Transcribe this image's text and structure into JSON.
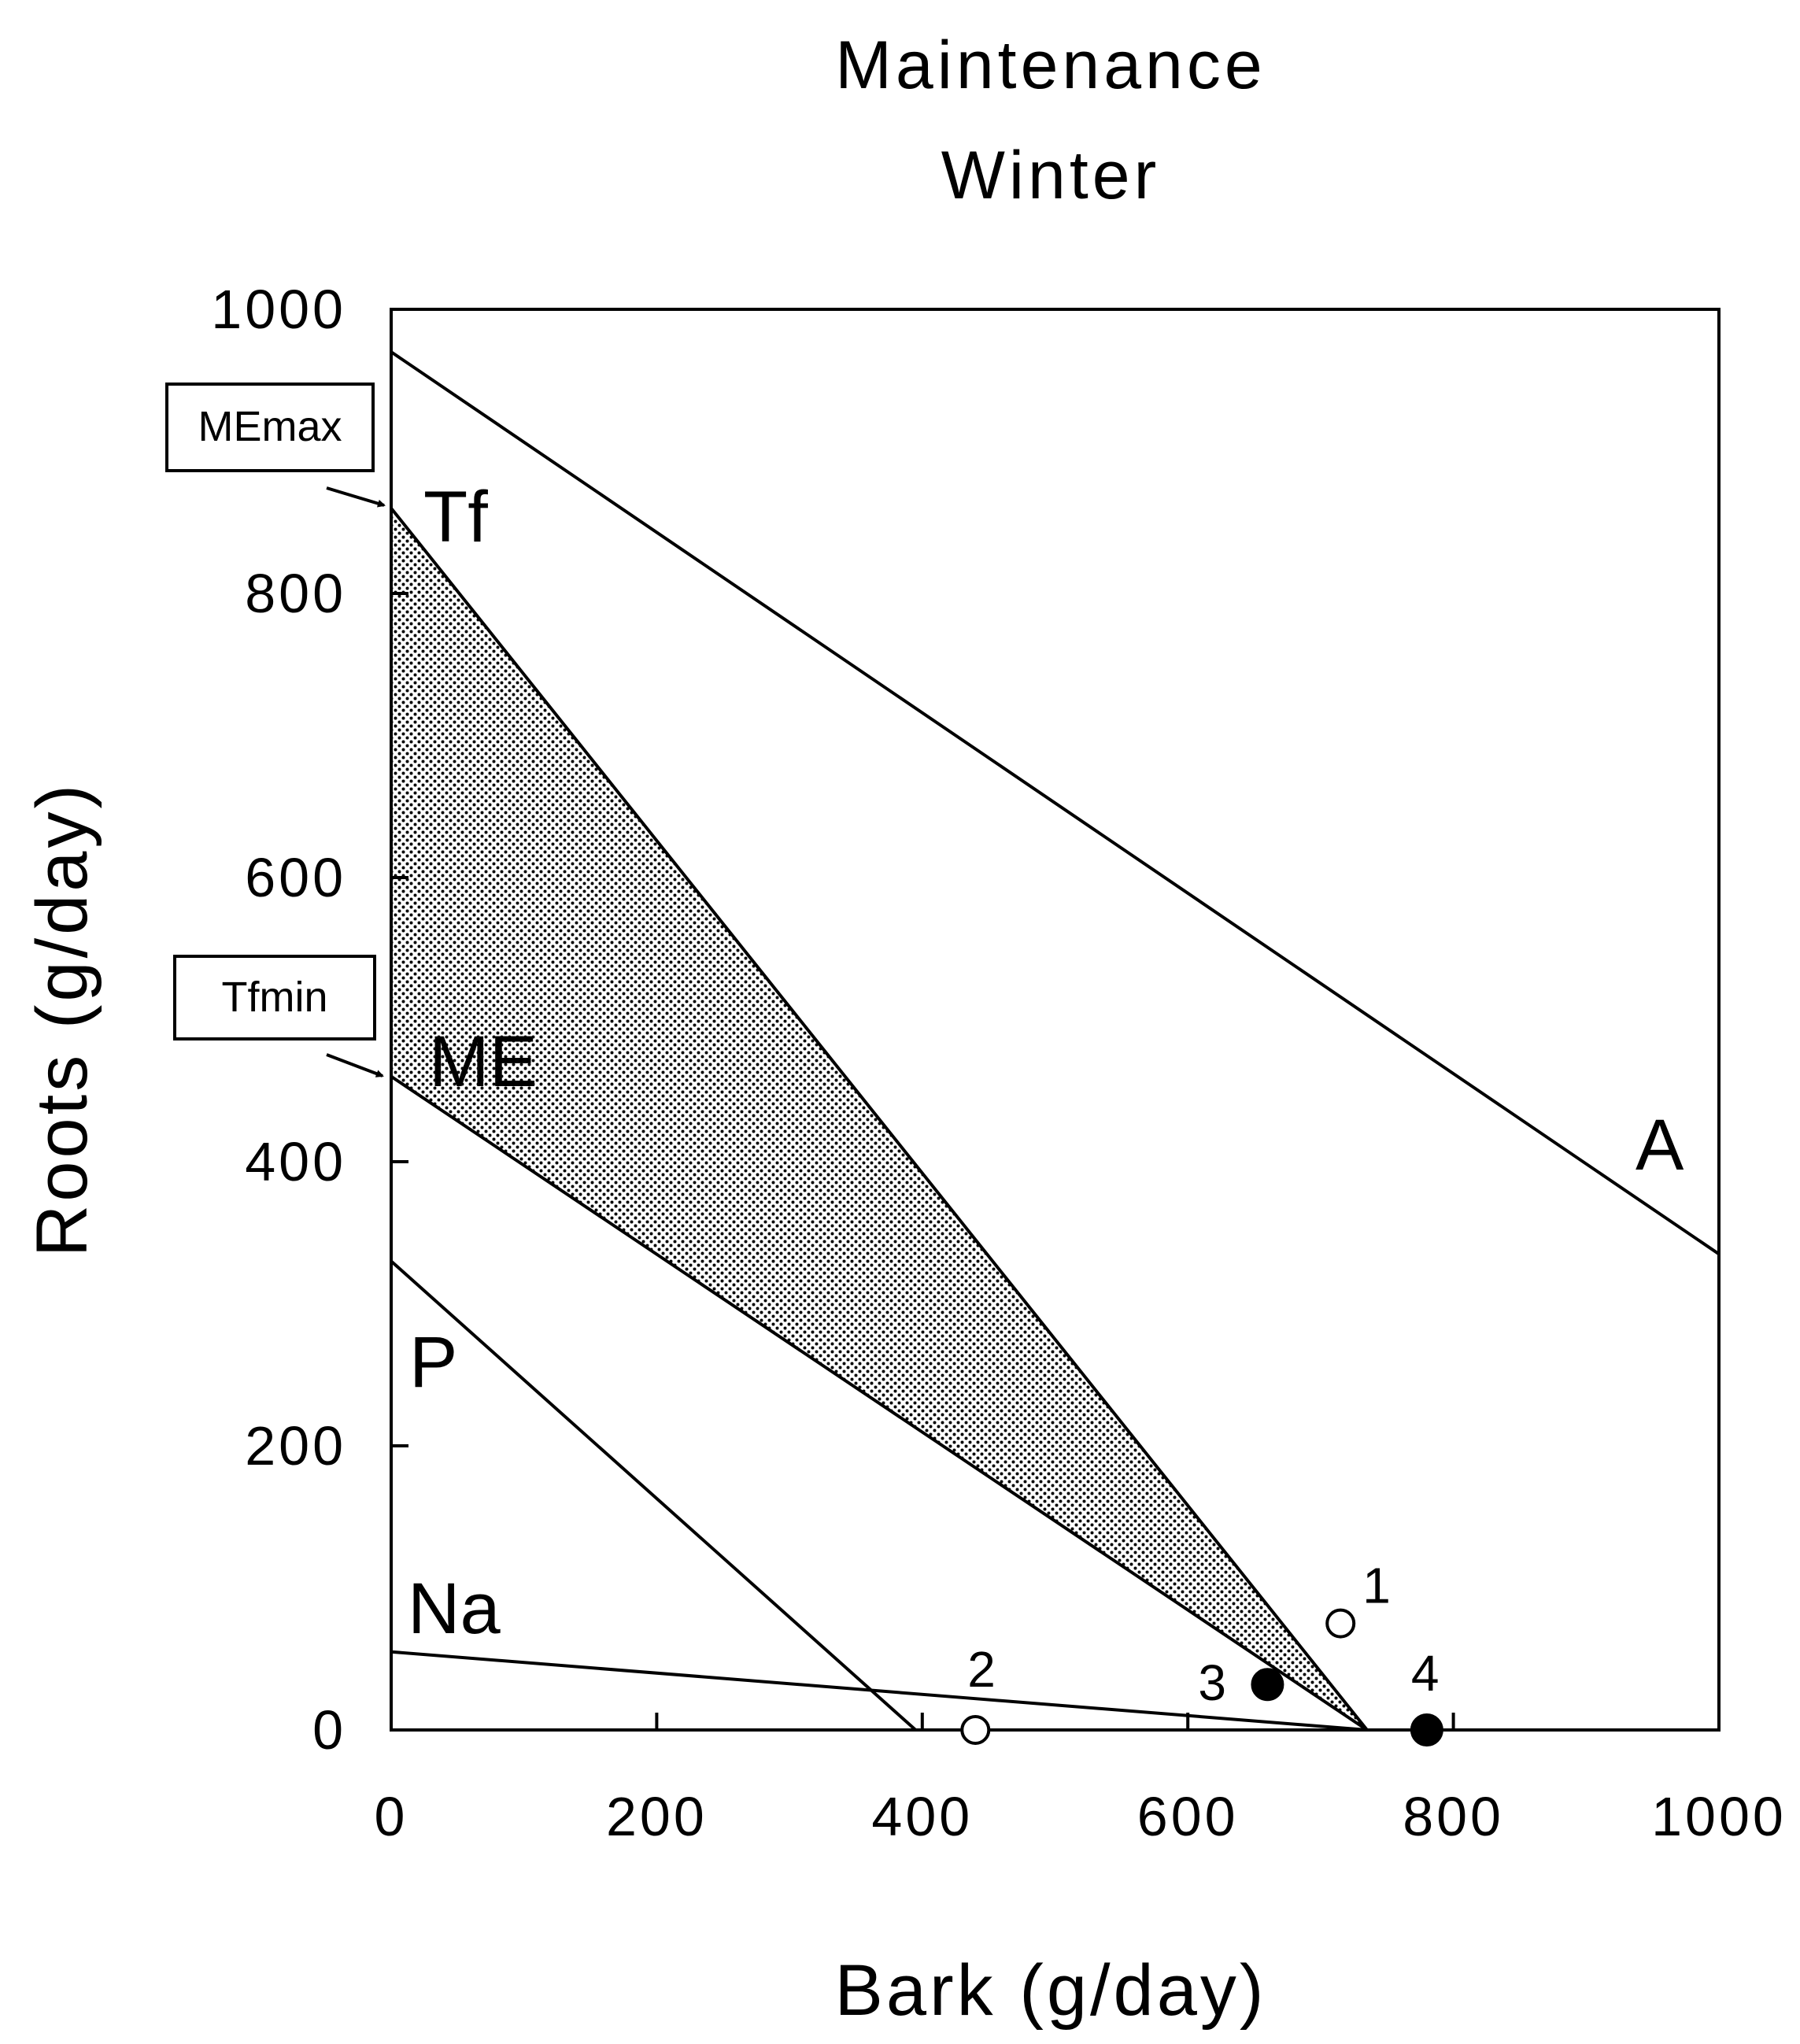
{
  "chart_data": {
    "type": "line",
    "title": [
      "Maintenance",
      "Winter"
    ],
    "xlabel": "Bark (g/day)",
    "ylabel": "Roots (g/day)",
    "xlim": [
      0,
      1000
    ],
    "ylim": [
      0,
      1000
    ],
    "x_ticks": [
      "0",
      "200",
      "400",
      "600",
      "800",
      "1000"
    ],
    "y_ticks": [
      "0",
      "200",
      "400",
      "600",
      "800",
      "1000"
    ],
    "grid": false,
    "series": [
      {
        "name": "A",
        "points": [
          [
            0,
            970
          ],
          [
            1000,
            335
          ]
        ]
      },
      {
        "name": "Tf",
        "points": [
          [
            0,
            860
          ],
          [
            735,
            0
          ]
        ]
      },
      {
        "name": "ME",
        "points": [
          [
            0,
            460
          ],
          [
            735,
            0
          ]
        ]
      },
      {
        "name": "P",
        "points": [
          [
            0,
            330
          ],
          [
            395,
            0
          ]
        ]
      },
      {
        "name": "Na",
        "points": [
          [
            0,
            55
          ],
          [
            735,
            0
          ]
        ]
      }
    ],
    "feasible_region": {
      "fill": "stippled",
      "vertices": [
        [
          0,
          860
        ],
        [
          0,
          460
        ],
        [
          735,
          0
        ]
      ]
    },
    "points": [
      {
        "label": "1",
        "x": 715,
        "y": 75,
        "marker": "open"
      },
      {
        "label": "2",
        "x": 440,
        "y": 0,
        "marker": "open"
      },
      {
        "label": "3",
        "x": 660,
        "y": 32,
        "marker": "filled"
      },
      {
        "label": "4",
        "x": 780,
        "y": 0,
        "marker": "filled"
      }
    ],
    "annotations": [
      {
        "text": "MEmax",
        "points_to": "Tf",
        "at": [
          0,
          860
        ]
      },
      {
        "text": "Tfmin",
        "points_to": "ME",
        "at": [
          0,
          460
        ]
      }
    ]
  }
}
